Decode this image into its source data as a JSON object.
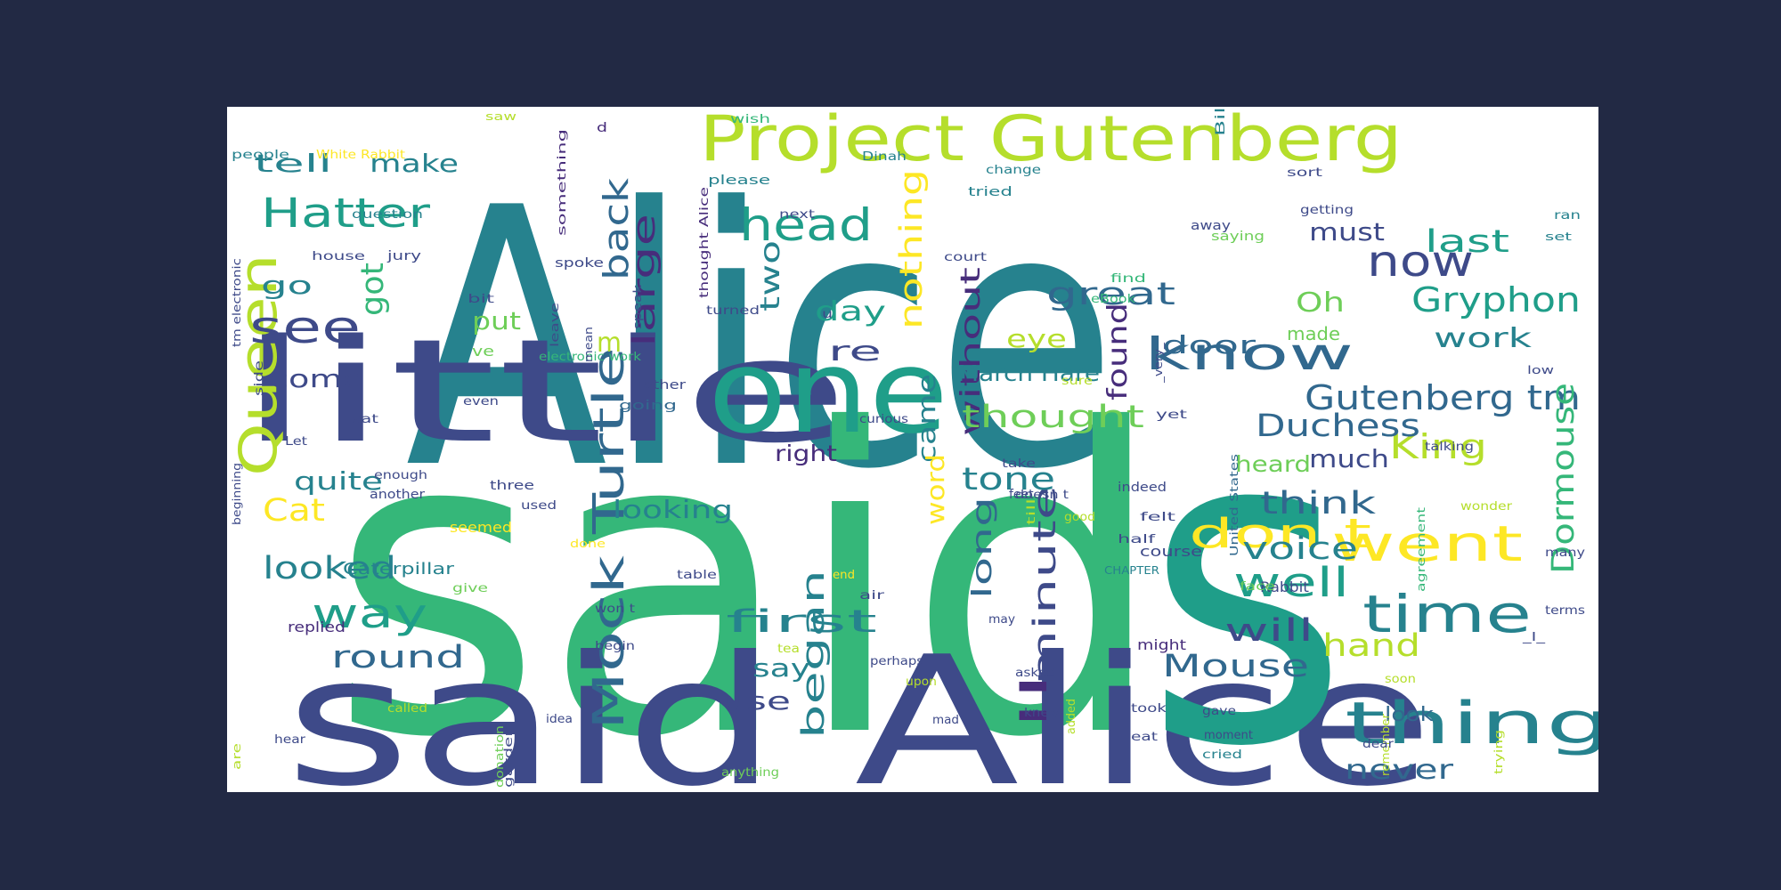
{
  "background_color": "#222944",
  "panel_color": "#ffffff",
  "palette": {
    "dark_purple": "#472d7b",
    "indigo": "#3e4a89",
    "blue": "#31688e",
    "teal": "#26828e",
    "green_teal": "#1f9e89",
    "green": "#35b779",
    "light_green": "#6ece58",
    "lime": "#b5de2b",
    "yellow": "#fde725"
  },
  "words": [
    {
      "text": "Alice",
      "color": "#26828e"
    },
    {
      "text": "said",
      "color": "#35b779"
    },
    {
      "text": "said Alice",
      "color": "#3e4a89"
    },
    {
      "text": "s",
      "color": "#1f9e89"
    },
    {
      "text": "little",
      "color": "#3e4a89"
    },
    {
      "text": "one",
      "color": "#1f9e89"
    },
    {
      "text": "Project Gutenberg",
      "color": "#b5de2b"
    },
    {
      "text": "Queen",
      "color": "#b5de2b"
    },
    {
      "text": "Mock Turtle",
      "color": "#31688e"
    },
    {
      "text": "thing",
      "color": "#26828e"
    },
    {
      "text": "head",
      "color": "#1f9e89"
    },
    {
      "text": "know",
      "color": "#31688e"
    },
    {
      "text": "Hatter",
      "color": "#1f9e89"
    },
    {
      "text": "time",
      "color": "#26828e"
    },
    {
      "text": "went",
      "color": "#fde725"
    },
    {
      "text": "well",
      "color": "#1f9e89"
    },
    {
      "text": "way",
      "color": "#1f9e89"
    },
    {
      "text": "see",
      "color": "#3e4a89"
    },
    {
      "text": "now",
      "color": "#3e4a89"
    },
    {
      "text": "don t",
      "color": "#fde725"
    },
    {
      "text": "large",
      "color": "#472d7b"
    },
    {
      "text": "back",
      "color": "#31688e"
    },
    {
      "text": "began",
      "color": "#26828e"
    },
    {
      "text": "minute",
      "color": "#3e4a89"
    },
    {
      "text": "ll",
      "color": "#472d7b"
    },
    {
      "text": "Gryphon",
      "color": "#1f9e89"
    },
    {
      "text": "Gutenberg tm",
      "color": "#31688e"
    },
    {
      "text": "King",
      "color": "#b5de2b"
    },
    {
      "text": "Dormouse",
      "color": "#35b779"
    },
    {
      "text": "first",
      "color": "#26828e"
    },
    {
      "text": "Mouse",
      "color": "#31688e"
    },
    {
      "text": "nothing",
      "color": "#fde725"
    },
    {
      "text": "without",
      "color": "#472d7b"
    },
    {
      "text": "great",
      "color": "#31688e"
    },
    {
      "text": "Duchess",
      "color": "#31688e"
    },
    {
      "text": "thought",
      "color": "#6ece58"
    },
    {
      "text": "looked",
      "color": "#26828e"
    },
    {
      "text": "round",
      "color": "#31688e"
    },
    {
      "text": "Cat",
      "color": "#fde725"
    },
    {
      "text": "think",
      "color": "#31688e"
    },
    {
      "text": "voice",
      "color": "#26828e"
    },
    {
      "text": "hand",
      "color": "#b5de2b"
    },
    {
      "text": "will",
      "color": "#3e4a89"
    },
    {
      "text": "tell",
      "color": "#26828e"
    },
    {
      "text": "make",
      "color": "#26828e"
    },
    {
      "text": "got",
      "color": "#35b779"
    },
    {
      "text": "go",
      "color": "#26828e"
    },
    {
      "text": "come",
      "color": "#3e4a89"
    },
    {
      "text": "quite",
      "color": "#26828e"
    },
    {
      "text": "must",
      "color": "#3e4a89"
    },
    {
      "text": "last",
      "color": "#1f9e89"
    },
    {
      "text": "Oh",
      "color": "#6ece58"
    },
    {
      "text": "work",
      "color": "#26828e"
    },
    {
      "text": "two",
      "color": "#26828e"
    },
    {
      "text": "day",
      "color": "#1f9e89"
    },
    {
      "text": "re",
      "color": "#3e4a89"
    },
    {
      "text": "m",
      "color": "#b5de2b"
    },
    {
      "text": "eye",
      "color": "#b5de2b"
    },
    {
      "text": "door",
      "color": "#31688e"
    },
    {
      "text": "found",
      "color": "#472d7b"
    },
    {
      "text": "much",
      "color": "#3e4a89"
    },
    {
      "text": "heard",
      "color": "#6ece58"
    },
    {
      "text": "March Hare",
      "color": "#26828e"
    },
    {
      "text": "right",
      "color": "#472d7b"
    },
    {
      "text": "tone",
      "color": "#26828e"
    },
    {
      "text": "long",
      "color": "#31688e"
    },
    {
      "text": "looking",
      "color": "#26828e"
    },
    {
      "text": "came",
      "color": "#26828e"
    },
    {
      "text": "word",
      "color": "#fde725"
    },
    {
      "text": "say",
      "color": "#26828e"
    },
    {
      "text": "use",
      "color": "#3e4a89"
    },
    {
      "text": "never",
      "color": "#31688e"
    },
    {
      "text": "put",
      "color": "#6ece58"
    },
    {
      "text": "made",
      "color": "#6ece58"
    },
    {
      "text": "Caterpillar",
      "color": "#26828e"
    },
    {
      "text": "seemed",
      "color": "#fde725"
    },
    {
      "text": "replied",
      "color": "#472d7b"
    },
    {
      "text": "might",
      "color": "#472d7b"
    },
    {
      "text": "Rabbit",
      "color": "#3e4a89"
    },
    {
      "text": "course",
      "color": "#3e4a89"
    },
    {
      "text": "look",
      "color": "#31688e"
    },
    {
      "text": "people",
      "color": "#26828e"
    },
    {
      "text": "White Rabbit",
      "color": "#fde725"
    },
    {
      "text": "saw",
      "color": "#b5de2b"
    },
    {
      "text": "something",
      "color": "#472d7b"
    },
    {
      "text": "thought Alice",
      "color": "#472d7b"
    },
    {
      "text": "please",
      "color": "#26828e"
    },
    {
      "text": "wish",
      "color": "#35b779"
    },
    {
      "text": "Dinah",
      "color": "#26828e"
    },
    {
      "text": "d",
      "color": "#472d7b"
    },
    {
      "text": "change",
      "color": "#26828e"
    },
    {
      "text": "tried",
      "color": "#26828e"
    },
    {
      "text": "Bill",
      "color": "#26828e"
    },
    {
      "text": "question",
      "color": "#26828e"
    },
    {
      "text": "house",
      "color": "#3e4a89"
    },
    {
      "text": "jury",
      "color": "#3e4a89"
    },
    {
      "text": "spoke",
      "color": "#3e4a89"
    },
    {
      "text": "next",
      "color": "#3e4a89"
    },
    {
      "text": "court",
      "color": "#3e4a89"
    },
    {
      "text": "away",
      "color": "#3e4a89"
    },
    {
      "text": "getting",
      "color": "#3e4a89"
    },
    {
      "text": "sort",
      "color": "#3e4a89"
    },
    {
      "text": "saying",
      "color": "#6ece58"
    },
    {
      "text": "ran",
      "color": "#26828e"
    },
    {
      "text": "set",
      "color": "#26828e"
    },
    {
      "text": "find",
      "color": "#35b779"
    },
    {
      "text": "eBook",
      "color": "#35b779"
    },
    {
      "text": "bit",
      "color": "#3e4a89"
    },
    {
      "text": "turned",
      "color": "#3e4a89"
    },
    {
      "text": "u",
      "color": "#3e4a89"
    },
    {
      "text": "electronic work",
      "color": "#35b779"
    },
    {
      "text": "ve",
      "color": "#6ece58"
    },
    {
      "text": "rather",
      "color": "#3e4a89"
    },
    {
      "text": "going",
      "color": "#31688e"
    },
    {
      "text": "curious",
      "color": "#3e4a89"
    },
    {
      "text": "sat",
      "color": "#3e4a89"
    },
    {
      "text": "even",
      "color": "#3e4a89"
    },
    {
      "text": "Let",
      "color": "#3e4a89"
    },
    {
      "text": "side",
      "color": "#3e4a89"
    },
    {
      "text": "enough",
      "color": "#3e4a89"
    },
    {
      "text": "another",
      "color": "#3e4a89"
    },
    {
      "text": "three",
      "color": "#3e4a89"
    },
    {
      "text": "used",
      "color": "#3e4a89"
    },
    {
      "text": "take",
      "color": "#3e4a89"
    },
    {
      "text": "doesn t",
      "color": "#3e4a89"
    },
    {
      "text": "feet",
      "color": "#3e4a89"
    },
    {
      "text": "indeed",
      "color": "#3e4a89"
    },
    {
      "text": "felt",
      "color": "#3e4a89"
    },
    {
      "text": "half",
      "color": "#3e4a89"
    },
    {
      "text": "CHAPTER",
      "color": "#26828e"
    },
    {
      "text": "talking",
      "color": "#3e4a89"
    },
    {
      "text": "yet",
      "color": "#3e4a89"
    },
    {
      "text": "low",
      "color": "#3e4a89"
    },
    {
      "text": "sure",
      "color": "#b5de2b"
    },
    {
      "text": "United States",
      "color": "#31688e"
    },
    {
      "text": "wonder",
      "color": "#b5de2b"
    },
    {
      "text": "agreement",
      "color": "#35b779"
    },
    {
      "text": "many",
      "color": "#3e4a89"
    },
    {
      "text": "terms",
      "color": "#3e4a89"
    },
    {
      "text": "_I_",
      "color": "#3e4a89"
    },
    {
      "text": "face",
      "color": "#6ece58"
    },
    {
      "text": "done",
      "color": "#fde725"
    },
    {
      "text": "give",
      "color": "#6ece58"
    },
    {
      "text": "table",
      "color": "#3e4a89"
    },
    {
      "text": "end",
      "color": "#fde725"
    },
    {
      "text": "air",
      "color": "#3e4a89"
    },
    {
      "text": "may",
      "color": "#3e4a89"
    },
    {
      "text": "won t",
      "color": "#3e4a89"
    },
    {
      "text": "begin",
      "color": "#3e4a89"
    },
    {
      "text": "tea",
      "color": "#b5de2b"
    },
    {
      "text": "perhaps",
      "color": "#3e4a89"
    },
    {
      "text": "asked",
      "color": "#3e4a89"
    },
    {
      "text": "upon",
      "color": "#b5de2b"
    },
    {
      "text": "mad",
      "color": "#3e4a89"
    },
    {
      "text": "added",
      "color": "#b5de2b"
    },
    {
      "text": "took",
      "color": "#3e4a89"
    },
    {
      "text": "gave",
      "color": "#3e4a89"
    },
    {
      "text": "moment",
      "color": "#3e4a89"
    },
    {
      "text": "cried",
      "color": "#26828e"
    },
    {
      "text": "soon",
      "color": "#b5de2b"
    },
    {
      "text": "remember",
      "color": "#b5de2b"
    },
    {
      "text": "dear",
      "color": "#3e4a89"
    },
    {
      "text": "trying",
      "color": "#b5de2b"
    },
    {
      "text": "called",
      "color": "#b5de2b"
    },
    {
      "text": "hear",
      "color": "#3e4a89"
    },
    {
      "text": "garden",
      "color": "#3e4a89"
    },
    {
      "text": "donation",
      "color": "#6ece58"
    },
    {
      "text": "idea",
      "color": "#3e4a89"
    },
    {
      "text": "anything",
      "color": "#6ece58"
    },
    {
      "text": "knew",
      "color": "#3e4a89"
    },
    {
      "text": "eat",
      "color": "#3e4a89"
    },
    {
      "text": "are",
      "color": "#b5de2b"
    },
    {
      "text": "tm electronic",
      "color": "#3e4a89"
    },
    {
      "text": "beginning",
      "color": "#3e4a89"
    },
    {
      "text": "leave",
      "color": "#3e4a89"
    },
    {
      "text": "speak",
      "color": "#3e4a89"
    },
    {
      "text": "mean",
      "color": "#3e4a89"
    },
    {
      "text": "good",
      "color": "#b5de2b"
    },
    {
      "text": "till",
      "color": "#b5de2b"
    },
    {
      "text": "_very_",
      "color": "#3e4a89"
    }
  ]
}
